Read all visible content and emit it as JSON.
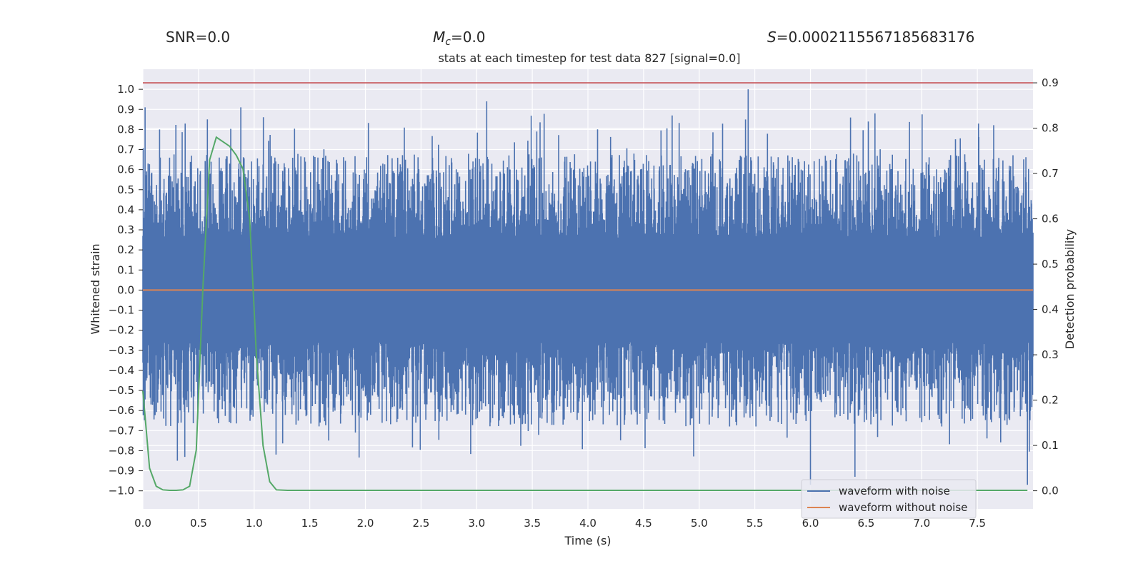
{
  "header": {
    "snr_label": "SNR",
    "snr_value": "=0.0",
    "mc_symbol": "M",
    "mc_subscript": "c",
    "mc_value": "=0.0",
    "s_symbol": "S",
    "s_value": "=0.0002115567185683176"
  },
  "chart_data": {
    "type": "line",
    "title": "stats at each timestep for test data 827 [signal=0.0]",
    "xlabel": "Time (s)",
    "ylabel": "Whitened strain",
    "ylabel_right": "Detection probability",
    "xlim": [
      0.0,
      8.0
    ],
    "ylim": [
      -1.09,
      1.1
    ],
    "ylim_right": [
      -0.04,
      0.93
    ],
    "x_ticks": [
      0.0,
      0.5,
      1.0,
      1.5,
      2.0,
      2.5,
      3.0,
      3.5,
      4.0,
      4.5,
      5.0,
      5.5,
      6.0,
      6.5,
      7.0,
      7.5
    ],
    "x_tick_labels": [
      "0.0",
      "0.5",
      "1.0",
      "1.5",
      "2.0",
      "2.5",
      "3.0",
      "3.5",
      "4.0",
      "4.5",
      "5.0",
      "5.5",
      "6.0",
      "6.5",
      "7.0",
      "7.5"
    ],
    "y_ticks": [
      1.0,
      0.9,
      0.8,
      0.7,
      0.6,
      0.5,
      0.4,
      0.3,
      0.2,
      0.1,
      0.0,
      -0.1,
      -0.2,
      -0.3,
      -0.4,
      -0.5,
      -0.6,
      -0.7,
      -0.8,
      -0.9,
      -1.0
    ],
    "y_tick_labels": [
      "1.0",
      "0.9",
      "0.8",
      "0.7",
      "0.6",
      "0.5",
      "0.4",
      "0.3",
      "0.2",
      "0.1",
      "0.0",
      "−0.1",
      "−0.2",
      "−0.3",
      "−0.4",
      "−0.5",
      "−0.6",
      "−0.7",
      "−0.8",
      "−0.9",
      "−1.0"
    ],
    "y_right_ticks": [
      0.9,
      0.8,
      0.7,
      0.6,
      0.5,
      0.4,
      0.3,
      0.2,
      0.1,
      0.0
    ],
    "y_right_tick_labels": [
      "0.9",
      "0.8",
      "0.7",
      "0.6",
      "0.5",
      "0.4",
      "0.3",
      "0.2",
      "0.1",
      "0.0"
    ],
    "threshold_line": {
      "axis": "right",
      "value": 0.9,
      "color": "#c44e52"
    },
    "series": [
      {
        "name": "waveform with noise",
        "axis": "left",
        "color": "#4c72b0",
        "style": "dense noise trace, approx ±0.5 band with spikes",
        "approx_envelope": {
          "upper_typical": 0.5,
          "lower_typical": -0.55,
          "peaks": [
            [
              0.02,
              0.91
            ],
            [
              0.15,
              0.8
            ],
            [
              0.58,
              0.85
            ],
            [
              0.88,
              0.91
            ],
            [
              3.09,
              0.94
            ],
            [
              5.44,
              1.0
            ],
            [
              6.58,
              0.88
            ],
            [
              6.4,
              -0.93
            ],
            [
              6.0,
              -0.97
            ],
            [
              7.95,
              -0.97
            ]
          ]
        }
      },
      {
        "name": "waveform without noise",
        "axis": "left",
        "color": "#dd8452",
        "x": [
          0.0,
          8.0
        ],
        "y": [
          0.0,
          0.0
        ]
      },
      {
        "name": "detection probability",
        "axis": "right",
        "color": "#55a868",
        "x": [
          0.0,
          0.06,
          0.12,
          0.18,
          0.24,
          0.3,
          0.36,
          0.42,
          0.48,
          0.54,
          0.6,
          0.66,
          0.72,
          0.78,
          0.84,
          0.9,
          0.96,
          1.02,
          1.08,
          1.14,
          1.2,
          1.3,
          8.0
        ],
        "y": [
          0.22,
          0.05,
          0.01,
          0.002,
          0.001,
          0.001,
          0.002,
          0.01,
          0.09,
          0.45,
          0.73,
          0.78,
          0.77,
          0.76,
          0.74,
          0.71,
          0.6,
          0.3,
          0.1,
          0.02,
          0.002,
          0.001,
          0.001
        ]
      }
    ],
    "legend": {
      "position": "lower-right",
      "entries": [
        {
          "label": "waveform with noise",
          "color": "#4c72b0"
        },
        {
          "label": "waveform without noise",
          "color": "#dd8452"
        }
      ]
    },
    "style": {
      "background": "#eaeaf2",
      "grid": true,
      "grid_color": "#ffffff"
    }
  }
}
